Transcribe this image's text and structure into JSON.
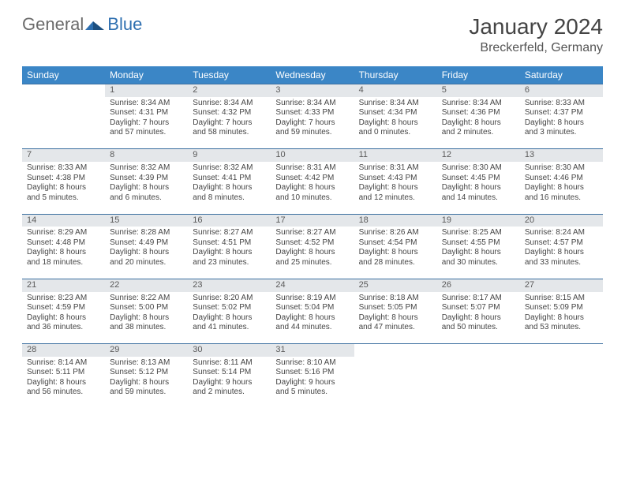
{
  "logo": {
    "part1": "General",
    "part2": "Blue"
  },
  "header": {
    "title": "January 2024",
    "location": "Breckerfeld, Germany"
  },
  "colors": {
    "header_bg": "#3b86c6",
    "header_text": "#ffffff",
    "daynum_bg": "#e4e7ea",
    "row_border": "#3b6fa0",
    "text": "#454545",
    "logo_gray": "#6b6b6b",
    "logo_blue": "#2e6fb0"
  },
  "weekdays": [
    "Sunday",
    "Monday",
    "Tuesday",
    "Wednesday",
    "Thursday",
    "Friday",
    "Saturday"
  ],
  "weeks": [
    {
      "nums": [
        "",
        "1",
        "2",
        "3",
        "4",
        "5",
        "6"
      ],
      "cells": [
        {
          "l1": "",
          "l2": "",
          "l3": "",
          "l4": ""
        },
        {
          "l1": "Sunrise: 8:34 AM",
          "l2": "Sunset: 4:31 PM",
          "l3": "Daylight: 7 hours",
          "l4": "and 57 minutes."
        },
        {
          "l1": "Sunrise: 8:34 AM",
          "l2": "Sunset: 4:32 PM",
          "l3": "Daylight: 7 hours",
          "l4": "and 58 minutes."
        },
        {
          "l1": "Sunrise: 8:34 AM",
          "l2": "Sunset: 4:33 PM",
          "l3": "Daylight: 7 hours",
          "l4": "and 59 minutes."
        },
        {
          "l1": "Sunrise: 8:34 AM",
          "l2": "Sunset: 4:34 PM",
          "l3": "Daylight: 8 hours",
          "l4": "and 0 minutes."
        },
        {
          "l1": "Sunrise: 8:34 AM",
          "l2": "Sunset: 4:36 PM",
          "l3": "Daylight: 8 hours",
          "l4": "and 2 minutes."
        },
        {
          "l1": "Sunrise: 8:33 AM",
          "l2": "Sunset: 4:37 PM",
          "l3": "Daylight: 8 hours",
          "l4": "and 3 minutes."
        }
      ]
    },
    {
      "nums": [
        "7",
        "8",
        "9",
        "10",
        "11",
        "12",
        "13"
      ],
      "cells": [
        {
          "l1": "Sunrise: 8:33 AM",
          "l2": "Sunset: 4:38 PM",
          "l3": "Daylight: 8 hours",
          "l4": "and 5 minutes."
        },
        {
          "l1": "Sunrise: 8:32 AM",
          "l2": "Sunset: 4:39 PM",
          "l3": "Daylight: 8 hours",
          "l4": "and 6 minutes."
        },
        {
          "l1": "Sunrise: 8:32 AM",
          "l2": "Sunset: 4:41 PM",
          "l3": "Daylight: 8 hours",
          "l4": "and 8 minutes."
        },
        {
          "l1": "Sunrise: 8:31 AM",
          "l2": "Sunset: 4:42 PM",
          "l3": "Daylight: 8 hours",
          "l4": "and 10 minutes."
        },
        {
          "l1": "Sunrise: 8:31 AM",
          "l2": "Sunset: 4:43 PM",
          "l3": "Daylight: 8 hours",
          "l4": "and 12 minutes."
        },
        {
          "l1": "Sunrise: 8:30 AM",
          "l2": "Sunset: 4:45 PM",
          "l3": "Daylight: 8 hours",
          "l4": "and 14 minutes."
        },
        {
          "l1": "Sunrise: 8:30 AM",
          "l2": "Sunset: 4:46 PM",
          "l3": "Daylight: 8 hours",
          "l4": "and 16 minutes."
        }
      ]
    },
    {
      "nums": [
        "14",
        "15",
        "16",
        "17",
        "18",
        "19",
        "20"
      ],
      "cells": [
        {
          "l1": "Sunrise: 8:29 AM",
          "l2": "Sunset: 4:48 PM",
          "l3": "Daylight: 8 hours",
          "l4": "and 18 minutes."
        },
        {
          "l1": "Sunrise: 8:28 AM",
          "l2": "Sunset: 4:49 PM",
          "l3": "Daylight: 8 hours",
          "l4": "and 20 minutes."
        },
        {
          "l1": "Sunrise: 8:27 AM",
          "l2": "Sunset: 4:51 PM",
          "l3": "Daylight: 8 hours",
          "l4": "and 23 minutes."
        },
        {
          "l1": "Sunrise: 8:27 AM",
          "l2": "Sunset: 4:52 PM",
          "l3": "Daylight: 8 hours",
          "l4": "and 25 minutes."
        },
        {
          "l1": "Sunrise: 8:26 AM",
          "l2": "Sunset: 4:54 PM",
          "l3": "Daylight: 8 hours",
          "l4": "and 28 minutes."
        },
        {
          "l1": "Sunrise: 8:25 AM",
          "l2": "Sunset: 4:55 PM",
          "l3": "Daylight: 8 hours",
          "l4": "and 30 minutes."
        },
        {
          "l1": "Sunrise: 8:24 AM",
          "l2": "Sunset: 4:57 PM",
          "l3": "Daylight: 8 hours",
          "l4": "and 33 minutes."
        }
      ]
    },
    {
      "nums": [
        "21",
        "22",
        "23",
        "24",
        "25",
        "26",
        "27"
      ],
      "cells": [
        {
          "l1": "Sunrise: 8:23 AM",
          "l2": "Sunset: 4:59 PM",
          "l3": "Daylight: 8 hours",
          "l4": "and 36 minutes."
        },
        {
          "l1": "Sunrise: 8:22 AM",
          "l2": "Sunset: 5:00 PM",
          "l3": "Daylight: 8 hours",
          "l4": "and 38 minutes."
        },
        {
          "l1": "Sunrise: 8:20 AM",
          "l2": "Sunset: 5:02 PM",
          "l3": "Daylight: 8 hours",
          "l4": "and 41 minutes."
        },
        {
          "l1": "Sunrise: 8:19 AM",
          "l2": "Sunset: 5:04 PM",
          "l3": "Daylight: 8 hours",
          "l4": "and 44 minutes."
        },
        {
          "l1": "Sunrise: 8:18 AM",
          "l2": "Sunset: 5:05 PM",
          "l3": "Daylight: 8 hours",
          "l4": "and 47 minutes."
        },
        {
          "l1": "Sunrise: 8:17 AM",
          "l2": "Sunset: 5:07 PM",
          "l3": "Daylight: 8 hours",
          "l4": "and 50 minutes."
        },
        {
          "l1": "Sunrise: 8:15 AM",
          "l2": "Sunset: 5:09 PM",
          "l3": "Daylight: 8 hours",
          "l4": "and 53 minutes."
        }
      ]
    },
    {
      "nums": [
        "28",
        "29",
        "30",
        "31",
        "",
        "",
        ""
      ],
      "cells": [
        {
          "l1": "Sunrise: 8:14 AM",
          "l2": "Sunset: 5:11 PM",
          "l3": "Daylight: 8 hours",
          "l4": "and 56 minutes."
        },
        {
          "l1": "Sunrise: 8:13 AM",
          "l2": "Sunset: 5:12 PM",
          "l3": "Daylight: 8 hours",
          "l4": "and 59 minutes."
        },
        {
          "l1": "Sunrise: 8:11 AM",
          "l2": "Sunset: 5:14 PM",
          "l3": "Daylight: 9 hours",
          "l4": "and 2 minutes."
        },
        {
          "l1": "Sunrise: 8:10 AM",
          "l2": "Sunset: 5:16 PM",
          "l3": "Daylight: 9 hours",
          "l4": "and 5 minutes."
        },
        {
          "l1": "",
          "l2": "",
          "l3": "",
          "l4": ""
        },
        {
          "l1": "",
          "l2": "",
          "l3": "",
          "l4": ""
        },
        {
          "l1": "",
          "l2": "",
          "l3": "",
          "l4": ""
        }
      ]
    }
  ]
}
